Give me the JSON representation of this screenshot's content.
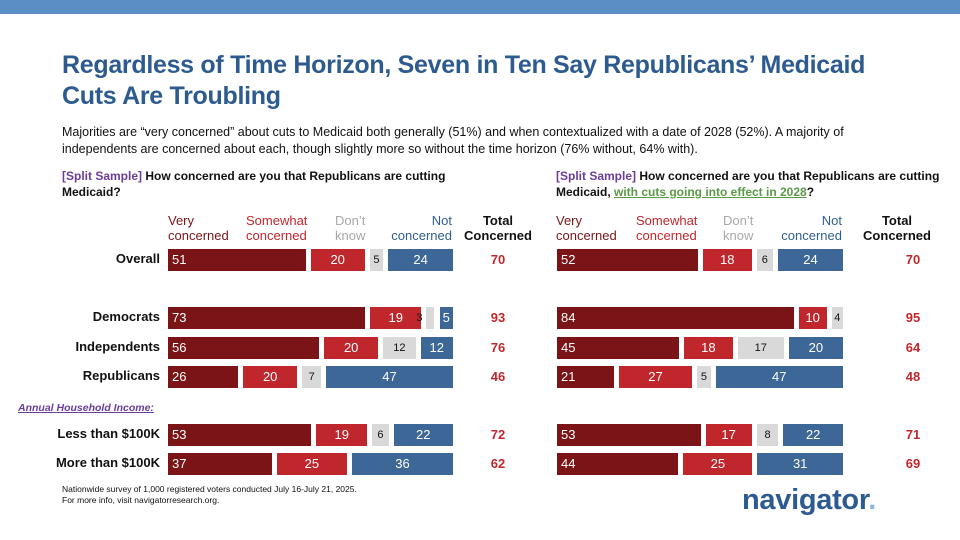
{
  "title": "Regardless of Time Horizon, Seven in Ten Say Republicans’ Medicaid Cuts Are Troubling",
  "subtitle": "Majorities are “very concerned” about cuts to Medicaid both generally (51%) and when contextualized with a date of 2028 (52%). A majority of independents are concerned about each, though slightly more so without the time horizon (76% without, 64% with).",
  "question_left": {
    "tag": "[Split Sample]",
    "text": " How concerned are you that Republicans are cutting Medicaid?"
  },
  "question_right": {
    "tag": "[Split Sample]",
    "text": " How concerned are you that Republicans are cutting Medicaid, ",
    "highlight": "with cuts going into effect in 2028",
    "end": "?"
  },
  "column_headers": {
    "very_1": "Very",
    "very_2": "concerned",
    "some_1": "Somewhat",
    "some_2": "concerned",
    "dk_1": "Don’t",
    "dk_2": "know",
    "not_1": "Not",
    "not_2": "concerned",
    "total_1": "Total",
    "total_2": "Concerned"
  },
  "income_header": "Annual Household Income:",
  "footnote_1": "Nationwide survey of 1,000 registered voters conducted July 16-July 21, 2025.",
  "footnote_2": "For more info, visit navigatorresearch.org.",
  "logo": {
    "text": "navigator",
    "dot": "."
  },
  "colors": {
    "very": "#7a1416",
    "somewhat": "#c0272d",
    "dont_know": "#d9d9d9",
    "not": "#3c6797",
    "title": "#2d5b8f",
    "bar": "#5b8ec4"
  },
  "chart_data": [
    {
      "type": "bar",
      "orientation": "horizontal-stacked",
      "title": "How concerned are you that Republicans are cutting Medicaid?",
      "series_names": [
        "Very concerned",
        "Somewhat concerned",
        "Don’t know",
        "Not concerned",
        "Total Concerned"
      ],
      "rows": [
        {
          "label": "Overall",
          "very": 51,
          "somewhat": 20,
          "dont_know": 5,
          "not": 24,
          "total": 70
        },
        {
          "label": "Democrats",
          "very": 73,
          "somewhat": 19,
          "dont_know": 3,
          "not": 5,
          "total": 93
        },
        {
          "label": "Independents",
          "very": 56,
          "somewhat": 20,
          "dont_know": 12,
          "not": 12,
          "total": 76
        },
        {
          "label": "Republicans",
          "very": 26,
          "somewhat": 20,
          "dont_know": 7,
          "not": 47,
          "total": 46
        },
        {
          "label": "Less than $100K",
          "very": 53,
          "somewhat": 19,
          "dont_know": 6,
          "not": 22,
          "total": 72
        },
        {
          "label": "More than $100K",
          "very": 37,
          "somewhat": 25,
          "dont_know": 0,
          "not": 36,
          "total": 62
        }
      ]
    },
    {
      "type": "bar",
      "orientation": "horizontal-stacked",
      "title": "How concerned are you that Republicans are cutting Medicaid, with cuts going into effect in 2028?",
      "series_names": [
        "Very concerned",
        "Somewhat concerned",
        "Don’t know",
        "Not concerned",
        "Total Concerned"
      ],
      "rows": [
        {
          "label": "Overall",
          "very": 52,
          "somewhat": 18,
          "dont_know": 6,
          "not": 24,
          "total": 70
        },
        {
          "label": "Democrats",
          "very": 84,
          "somewhat": 10,
          "dont_know": 4,
          "not": 0,
          "total": 95
        },
        {
          "label": "Independents",
          "very": 45,
          "somewhat": 18,
          "dont_know": 17,
          "not": 20,
          "total": 64
        },
        {
          "label": "Republicans",
          "very": 21,
          "somewhat": 27,
          "dont_know": 5,
          "not": 47,
          "total": 48
        },
        {
          "label": "Less than $100K",
          "very": 53,
          "somewhat": 17,
          "dont_know": 8,
          "not": 22,
          "total": 71
        },
        {
          "label": "More than $100K",
          "very": 44,
          "somewhat": 25,
          "dont_know": 0,
          "not": 31,
          "total": 69
        }
      ]
    }
  ]
}
